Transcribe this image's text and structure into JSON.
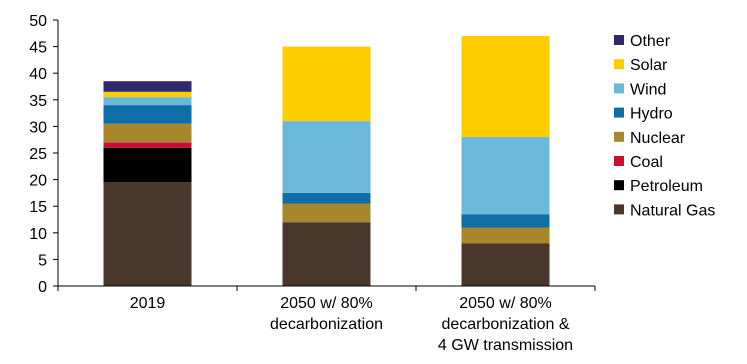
{
  "chart_data": {
    "type": "bar",
    "stacked": true,
    "categories": [
      [
        "2019"
      ],
      [
        "2050 w/ 80%",
        "decarbonization"
      ],
      [
        "2050 w/ 80%",
        "decarbonization &",
        "4 GW transmission"
      ]
    ],
    "ylim": [
      0,
      50
    ],
    "yticks": [
      "0",
      "5",
      "10",
      "15",
      "20",
      "25",
      "30",
      "35",
      "40",
      "45",
      "50"
    ],
    "grid": false,
    "legend_placement": "right",
    "series": [
      {
        "name": "Natural Gas",
        "color": "#4a372b",
        "values": [
          19.5,
          12.0,
          8.0
        ]
      },
      {
        "name": "Petroleum",
        "color": "#000000",
        "values": [
          6.5,
          0.0,
          0.0
        ]
      },
      {
        "name": "Coal",
        "color": "#c8102e",
        "values": [
          1.0,
          0.0,
          0.0
        ]
      },
      {
        "name": "Nuclear",
        "color": "#a8862b",
        "values": [
          3.5,
          3.5,
          3.0
        ]
      },
      {
        "name": "Hydro",
        "color": "#0e6ea8",
        "values": [
          3.5,
          2.0,
          2.5
        ]
      },
      {
        "name": "Wind",
        "color": "#6cb8d8",
        "values": [
          1.5,
          13.5,
          14.5
        ]
      },
      {
        "name": "Solar",
        "color": "#ffcc00",
        "values": [
          1.0,
          14.0,
          19.0
        ]
      },
      {
        "name": "Other",
        "color": "#2e2a6b",
        "values": [
          2.0,
          0.0,
          0.0
        ]
      }
    ]
  }
}
